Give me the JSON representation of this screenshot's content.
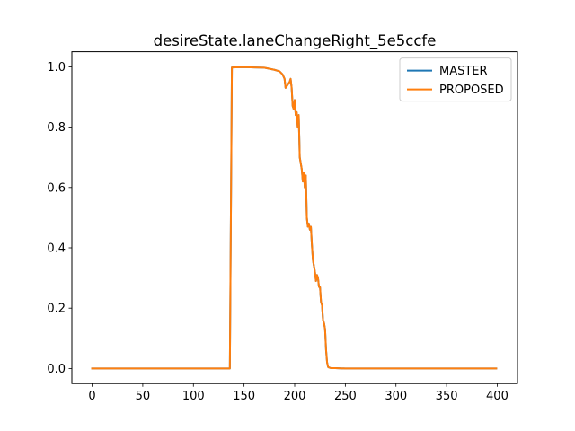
{
  "chart_data": {
    "type": "line",
    "title": "desireState.laneChangeRight_5e5ccfe",
    "xlabel": "",
    "ylabel": "",
    "xlim": [
      -20,
      420
    ],
    "ylim": [
      -0.05,
      1.05
    ],
    "x_ticks": [
      0,
      50,
      100,
      150,
      200,
      250,
      300,
      350,
      400
    ],
    "x_tick_labels": [
      "0",
      "50",
      "100",
      "150",
      "200",
      "250",
      "300",
      "350",
      "400"
    ],
    "y_ticks": [
      0.0,
      0.2,
      0.4,
      0.6,
      0.8,
      1.0
    ],
    "y_tick_labels": [
      "0.0",
      "0.2",
      "0.4",
      "0.6",
      "0.8",
      "1.0"
    ],
    "grid": false,
    "legend_position": "top-right",
    "series": [
      {
        "name": "MASTER",
        "color": "#1f77b4",
        "x": [
          0,
          50,
          100,
          136,
          137,
          138,
          150,
          160,
          170,
          180,
          185,
          188,
          190,
          191,
          193,
          195,
          196,
          197,
          198,
          199,
          200,
          201,
          202,
          203,
          204,
          205,
          206,
          207,
          208,
          209,
          210,
          211,
          212,
          213,
          214,
          215,
          216,
          217,
          218,
          219,
          220,
          221,
          222,
          223,
          224,
          225,
          226,
          227,
          228,
          229,
          230,
          231,
          232,
          233,
          234,
          235,
          236,
          237,
          238,
          239,
          240,
          250,
          300,
          350,
          399
        ],
        "values": [
          0.0,
          0.0,
          0.0,
          0.0,
          0.5,
          0.998,
          0.999,
          0.998,
          0.997,
          0.99,
          0.985,
          0.975,
          0.96,
          0.93,
          0.94,
          0.95,
          0.96,
          0.93,
          0.87,
          0.86,
          0.89,
          0.84,
          0.85,
          0.8,
          0.84,
          0.7,
          0.68,
          0.66,
          0.62,
          0.65,
          0.6,
          0.64,
          0.5,
          0.47,
          0.48,
          0.46,
          0.47,
          0.41,
          0.36,
          0.34,
          0.32,
          0.29,
          0.31,
          0.3,
          0.27,
          0.27,
          0.22,
          0.21,
          0.16,
          0.15,
          0.13,
          0.06,
          0.02,
          0.005,
          0.003,
          0.002,
          0.001,
          0.001,
          0.001,
          0.001,
          0.001,
          0.0,
          0.0,
          0.0,
          0.0
        ]
      },
      {
        "name": "PROPOSED",
        "color": "#ff7f0e",
        "x": [
          0,
          50,
          100,
          136,
          137,
          138,
          150,
          160,
          170,
          180,
          185,
          188,
          190,
          191,
          193,
          195,
          196,
          197,
          198,
          199,
          200,
          201,
          202,
          203,
          204,
          205,
          206,
          207,
          208,
          209,
          210,
          211,
          212,
          213,
          214,
          215,
          216,
          217,
          218,
          219,
          220,
          221,
          222,
          223,
          224,
          225,
          226,
          227,
          228,
          229,
          230,
          231,
          232,
          233,
          234,
          235,
          236,
          237,
          238,
          239,
          240,
          250,
          300,
          350,
          399
        ],
        "values": [
          0.0,
          0.0,
          0.0,
          0.0,
          0.5,
          0.998,
          0.999,
          0.998,
          0.997,
          0.99,
          0.985,
          0.975,
          0.96,
          0.93,
          0.94,
          0.95,
          0.96,
          0.93,
          0.87,
          0.86,
          0.89,
          0.84,
          0.85,
          0.8,
          0.84,
          0.7,
          0.68,
          0.66,
          0.62,
          0.65,
          0.6,
          0.64,
          0.5,
          0.47,
          0.48,
          0.46,
          0.47,
          0.41,
          0.36,
          0.34,
          0.32,
          0.29,
          0.31,
          0.3,
          0.27,
          0.27,
          0.22,
          0.21,
          0.16,
          0.15,
          0.13,
          0.06,
          0.02,
          0.005,
          0.003,
          0.002,
          0.001,
          0.001,
          0.001,
          0.001,
          0.001,
          0.0,
          0.0,
          0.0,
          0.0
        ]
      }
    ]
  }
}
